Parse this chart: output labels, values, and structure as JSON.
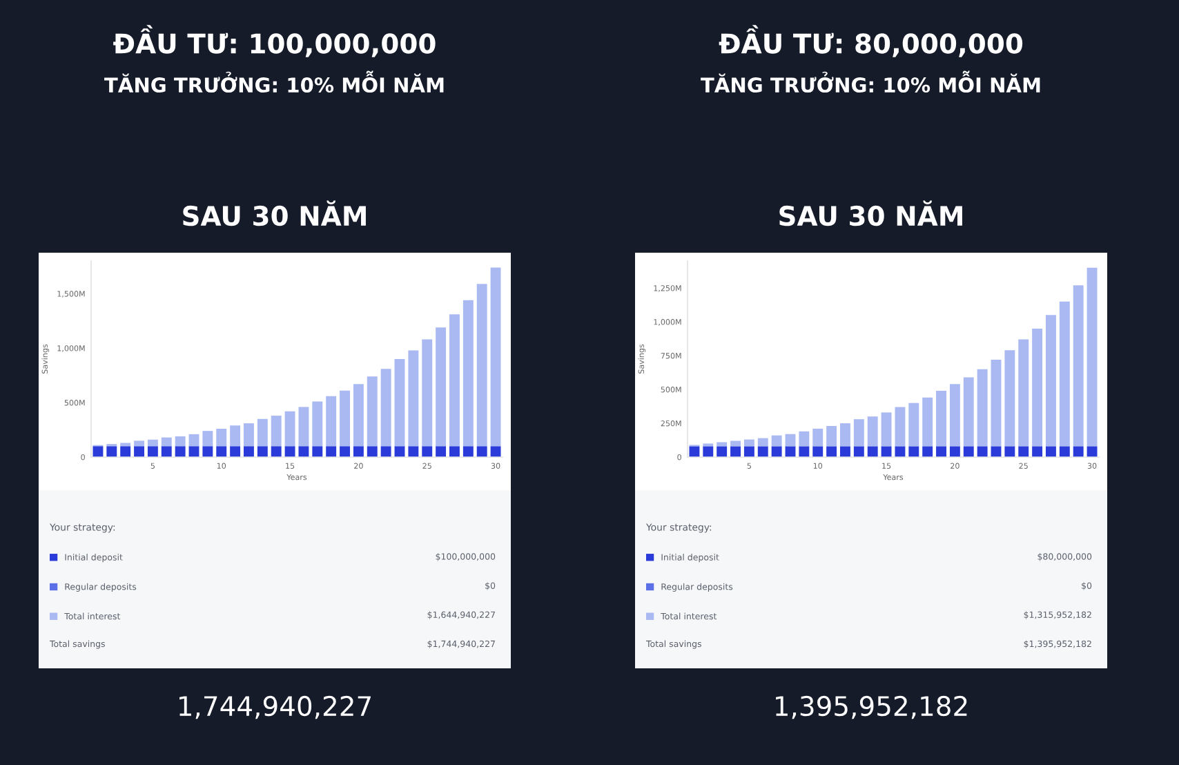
{
  "chart_data": [
    {
      "type": "bar",
      "title": "ĐẦU TƯ: 100,000,000",
      "subtitle": "TĂNG TRƯỞNG: 10% MỖI NĂM",
      "xlabel": "Years",
      "ylabel": "Savings",
      "legend_title": "Your strategy:",
      "x": [
        1,
        2,
        3,
        4,
        5,
        6,
        7,
        8,
        9,
        10,
        11,
        12,
        13,
        14,
        15,
        16,
        17,
        18,
        19,
        20,
        21,
        22,
        23,
        24,
        25,
        26,
        27,
        28,
        29,
        30
      ],
      "xlim": [
        0.5,
        30.5
      ],
      "xticks": [
        5,
        10,
        15,
        20,
        25,
        30
      ],
      "ylim": [
        0,
        1800000000
      ],
      "yticks": [
        0,
        {
          "value": 500000000,
          "label": "500M"
        },
        {
          "value": 1000000000,
          "label": "1,000M"
        },
        {
          "value": 1500000000,
          "label": "1,500M"
        }
      ],
      "stacked": true,
      "legend": "bottom",
      "grid": false,
      "series": [
        {
          "name": "Initial deposit",
          "color": "#2a3bd9",
          "values": [
            100000000,
            100000000,
            100000000,
            100000000,
            100000000,
            100000000,
            100000000,
            100000000,
            100000000,
            100000000,
            100000000,
            100000000,
            100000000,
            100000000,
            100000000,
            100000000,
            100000000,
            100000000,
            100000000,
            100000000,
            100000000,
            100000000,
            100000000,
            100000000,
            100000000,
            100000000,
            100000000,
            100000000,
            100000000,
            100000000
          ]
        },
        {
          "name": "Regular deposits",
          "color": "#5b6fe6",
          "values": [
            0,
            0,
            0,
            0,
            0,
            0,
            0,
            0,
            0,
            0,
            0,
            0,
            0,
            0,
            0,
            0,
            0,
            0,
            0,
            0,
            0,
            0,
            0,
            0,
            0,
            0,
            0,
            0,
            0,
            0
          ]
        },
        {
          "name": "Total interest",
          "color": "#aab9f2",
          "values": [
            10000000,
            20000000,
            30000000,
            50000000,
            60000000,
            80000000,
            90000000,
            110000000,
            140000000,
            160000000,
            190000000,
            210000000,
            250000000,
            280000000,
            320000000,
            360000000,
            410000000,
            460000000,
            510000000,
            570000000,
            640000000,
            710000000,
            800000000,
            880000000,
            980000000,
            1090000000,
            1210000000,
            1340000000,
            1490000000,
            1640000000
          ]
        }
      ],
      "annotations": [
        "SAU 30 NĂM",
        "$100,000,000",
        "$0",
        "$1,644,940,227",
        "Total savings",
        "$1,744,940,227",
        "1,744,940,227"
      ]
    },
    {
      "type": "bar",
      "title": "ĐẦU TƯ: 80,000,000",
      "subtitle": "TĂNG TRƯỞNG: 10% MỖI NĂM",
      "xlabel": "Years",
      "ylabel": "Savings",
      "legend_title": "Your strategy:",
      "x": [
        1,
        2,
        3,
        4,
        5,
        6,
        7,
        8,
        9,
        10,
        11,
        12,
        13,
        14,
        15,
        16,
        17,
        18,
        19,
        20,
        21,
        22,
        23,
        24,
        25,
        26,
        27,
        28,
        29,
        30
      ],
      "xlim": [
        0.5,
        30.5
      ],
      "xticks": [
        5,
        10,
        15,
        20,
        25,
        30
      ],
      "ylim": [
        0,
        1450000000
      ],
      "yticks": [
        0,
        {
          "value": 250000000,
          "label": "250M"
        },
        {
          "value": 500000000,
          "label": "500M"
        },
        {
          "value": 750000000,
          "label": "750M"
        },
        {
          "value": 1000000000,
          "label": "1,000M"
        },
        {
          "value": 1250000000,
          "label": "1,250M"
        }
      ],
      "stacked": true,
      "legend": "bottom",
      "grid": false,
      "series": [
        {
          "name": "Initial deposit",
          "color": "#2a3bd9",
          "values": [
            80000000,
            80000000,
            80000000,
            80000000,
            80000000,
            80000000,
            80000000,
            80000000,
            80000000,
            80000000,
            80000000,
            80000000,
            80000000,
            80000000,
            80000000,
            80000000,
            80000000,
            80000000,
            80000000,
            80000000,
            80000000,
            80000000,
            80000000,
            80000000,
            80000000,
            80000000,
            80000000,
            80000000,
            80000000,
            80000000
          ]
        },
        {
          "name": "Regular deposits",
          "color": "#5b6fe6",
          "values": [
            0,
            0,
            0,
            0,
            0,
            0,
            0,
            0,
            0,
            0,
            0,
            0,
            0,
            0,
            0,
            0,
            0,
            0,
            0,
            0,
            0,
            0,
            0,
            0,
            0,
            0,
            0,
            0,
            0,
            0
          ]
        },
        {
          "name": "Total interest",
          "color": "#aab9f2",
          "values": [
            10000000,
            20000000,
            30000000,
            40000000,
            50000000,
            60000000,
            80000000,
            90000000,
            110000000,
            130000000,
            150000000,
            170000000,
            200000000,
            220000000,
            250000000,
            290000000,
            320000000,
            360000000,
            410000000,
            460000000,
            510000000,
            570000000,
            640000000,
            710000000,
            790000000,
            870000000,
            970000000,
            1070000000,
            1190000000,
            1320000000
          ]
        }
      ],
      "annotations": [
        "SAU 30 NĂM",
        "$80,000,000",
        "$0",
        "$1,315,952,182",
        "Total savings",
        "$1,395,952,182",
        "1,395,952,182"
      ]
    }
  ]
}
